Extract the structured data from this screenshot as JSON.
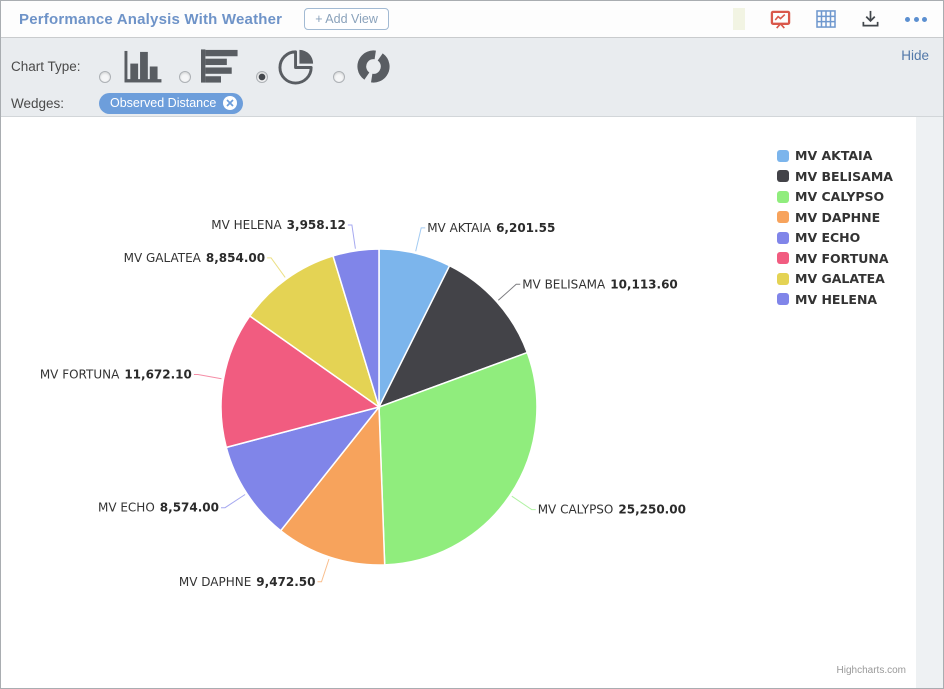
{
  "header": {
    "title": "Performance Analysis With Weather",
    "add_view_label": "+ Add View"
  },
  "toolbar": {
    "chart_type_label": "Chart Type:",
    "chart_types": [
      {
        "name": "column",
        "selected": false
      },
      {
        "name": "bar",
        "selected": false
      },
      {
        "name": "pie",
        "selected": true
      },
      {
        "name": "donut",
        "selected": false
      }
    ],
    "wedges_label": "Wedges:",
    "wedge_tag": "Observed Distance",
    "hide_label": "Hide"
  },
  "chart_data": {
    "type": "pie",
    "start_angle": 0,
    "legend_position": "right",
    "slices": [
      {
        "name": "MV AKTAIA",
        "value": 6201.55,
        "label": "6,201.55",
        "color": "#7cb5ec"
      },
      {
        "name": "MV BELISAMA",
        "value": 10113.6,
        "label": "10,113.60",
        "color": "#434348"
      },
      {
        "name": "MV CALYPSO",
        "value": 25250.0,
        "label": "25,250.00",
        "color": "#90ed7d"
      },
      {
        "name": "MV DAPHNE",
        "value": 9472.5,
        "label": "9,472.50",
        "color": "#f7a35c"
      },
      {
        "name": "MV ECHO",
        "value": 8574.0,
        "label": "8,574.00",
        "color": "#8085e9"
      },
      {
        "name": "MV FORTUNA",
        "value": 11672.1,
        "label": "11,672.10",
        "color": "#f15c80"
      },
      {
        "name": "MV GALATEA",
        "value": 8854.0,
        "label": "8,854.00",
        "color": "#e4d354"
      },
      {
        "name": "MV HELENA",
        "value": 3958.12,
        "label": "3,958.12",
        "color": "#8085e9"
      }
    ],
    "credits": "Highcharts.com"
  }
}
